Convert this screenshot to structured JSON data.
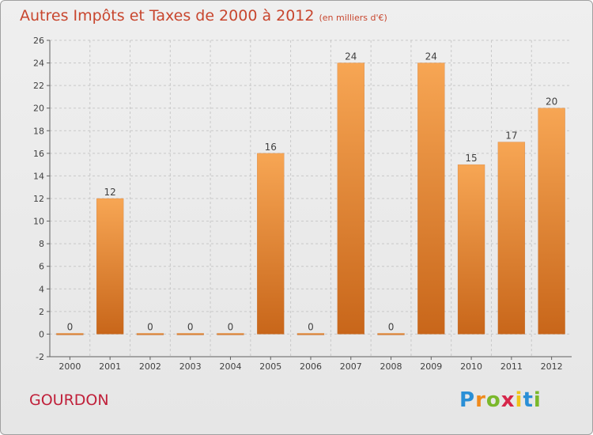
{
  "header": {
    "title": "Autres Impôts et Taxes de 2000 à 2012",
    "subtitle": "(en milliers d'€)"
  },
  "footer": {
    "city": "GOURDON",
    "logo": {
      "letters": [
        "P",
        "r",
        "o",
        "x",
        "i",
        "t",
        "i"
      ],
      "colors": [
        "#2a8fd6",
        "#f08a1c",
        "#7ab82b",
        "#d6264a",
        "#f0c419",
        "#2a8fd6",
        "#7ab82b"
      ]
    }
  },
  "colors": {
    "bar_top": "#f7a654",
    "bar_bottom": "#c8661a",
    "grid": "#c8c8c8",
    "axis": "#606060",
    "text": "#404040"
  },
  "chart_data": {
    "type": "bar",
    "title": "Autres Impôts et Taxes de 2000 à 2012",
    "subtitle": "(en milliers d'€)",
    "categories": [
      "2000",
      "2001",
      "2002",
      "2003",
      "2004",
      "2005",
      "2006",
      "2007",
      "2008",
      "2009",
      "2010",
      "2011",
      "2012"
    ],
    "values": [
      0,
      12,
      0,
      0,
      0,
      16,
      0,
      24,
      0,
      24,
      15,
      17,
      20
    ],
    "data_labels": [
      "0",
      "12",
      "0",
      "0",
      "0",
      "16",
      "0",
      "24",
      "0",
      "24",
      "15",
      "17",
      "20"
    ],
    "y_ticks": [
      -2,
      0,
      2,
      4,
      6,
      8,
      10,
      12,
      14,
      16,
      18,
      20,
      22,
      24,
      26
    ],
    "y_tick_labels": [
      "-2",
      "0",
      "2",
      "4",
      "6",
      "8",
      "10",
      "12",
      "14",
      "16",
      "18",
      "20",
      "22",
      "24",
      "26"
    ],
    "ylim": [
      -2,
      26
    ],
    "grid": true,
    "legend": "none"
  }
}
